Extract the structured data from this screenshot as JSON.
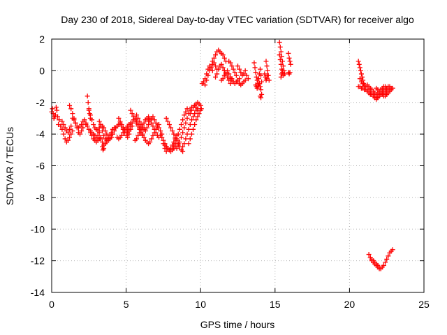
{
  "chart_data": {
    "type": "scatter",
    "title": "Day 230 of 2018, Sidereal Day-to-day VTEC variation (SDTVAR) for receiver algo",
    "xlabel": "GPS time / hours",
    "ylabel": "SDTVAR / TECUs",
    "xlim": [
      0,
      25
    ],
    "ylim": [
      -14,
      2
    ],
    "xticks": [
      0,
      5,
      10,
      15,
      20,
      25
    ],
    "yticks": [
      -14,
      -12,
      -10,
      -8,
      -6,
      -4,
      -2,
      0,
      2
    ],
    "xtick_labels": [
      "0",
      "5",
      "10",
      "15",
      "20",
      "25"
    ],
    "ytick_labels": [
      "-14",
      "-12",
      "-10",
      "-8",
      "-6",
      "-4",
      "-2",
      "0",
      "2"
    ],
    "grid": true,
    "marker": "+",
    "color": "#ff0000",
    "series": [
      {
        "name": "SDTVAR",
        "x": [
          0.0,
          0.05,
          0.1,
          0.15,
          0.2,
          0.25,
          0.3,
          0.35,
          0.4,
          0.45,
          0.5,
          0.6,
          0.7,
          0.8,
          0.9,
          1.0,
          1.1,
          1.2,
          1.3,
          1.4,
          0.7,
          0.8,
          0.9,
          1.0,
          1.1,
          1.2,
          1.3,
          1.2,
          1.3,
          1.4,
          1.5,
          1.6,
          1.7,
          1.8,
          1.9,
          2.0,
          2.1,
          1.4,
          1.5,
          1.6,
          1.7,
          1.8,
          1.9,
          2.0,
          2.1,
          2.2,
          2.3,
          2.3,
          2.4,
          2.5,
          2.6,
          2.7,
          2.8,
          2.9,
          3.0,
          3.1,
          3.2,
          2.4,
          2.45,
          2.5,
          2.55,
          2.6,
          2.5,
          2.6,
          2.7,
          2.8,
          2.9,
          3.0,
          3.1,
          3.2,
          3.3,
          2.6,
          2.7,
          2.8,
          2.9,
          3.0,
          3.1,
          3.2,
          3.3,
          3.2,
          3.3,
          3.4,
          3.5,
          3.6,
          3.7,
          3.8,
          3.9,
          4.0,
          4.1,
          4.2,
          3.3,
          3.4,
          3.5,
          3.6,
          3.7,
          3.8,
          3.9,
          4.0,
          4.1,
          3.4,
          3.5,
          3.6,
          3.7,
          3.8,
          3.9,
          4.0,
          4.1,
          4.2,
          4.3,
          3.4,
          3.45,
          3.5,
          4.3,
          4.4,
          4.5,
          4.6,
          4.7,
          4.8,
          4.9,
          5.0,
          5.1,
          5.2,
          4.4,
          4.5,
          4.6,
          4.7,
          4.8,
          4.9,
          5.0,
          5.1,
          5.2,
          5.3,
          4.5,
          4.6,
          4.7,
          4.8,
          4.9,
          5.0,
          5.1,
          5.2,
          5.3,
          5.4,
          5.1,
          5.2,
          5.3,
          5.4,
          5.5,
          5.6,
          5.7,
          5.8,
          5.9,
          6.0,
          6.1,
          5.3,
          5.4,
          5.5,
          5.6,
          5.7,
          5.8,
          5.9,
          6.0,
          6.1,
          6.2,
          5.6,
          5.7,
          5.8,
          5.9,
          6.0,
          6.1,
          6.2,
          6.3,
          6.4,
          6.5,
          5.7,
          5.8,
          5.9,
          6.0,
          6.1,
          6.2,
          6.3,
          6.4,
          6.5,
          6.3,
          6.4,
          6.5,
          6.6,
          6.7,
          6.8,
          6.9,
          7.0,
          7.1,
          7.2,
          6.5,
          6.6,
          6.7,
          6.8,
          6.9,
          7.0,
          7.1,
          7.2,
          7.3,
          6.5,
          6.6,
          6.7,
          6.8,
          6.9,
          7.0,
          7.1,
          7.2,
          7.3,
          7.4,
          7.4,
          7.5,
          7.6,
          7.7,
          7.8,
          7.9,
          8.0,
          8.1,
          8.2,
          8.3,
          8.4,
          7.5,
          7.6,
          7.7,
          7.8,
          7.9,
          8.0,
          8.1,
          8.2,
          8.3,
          7.7,
          7.8,
          7.9,
          8.0,
          8.1,
          8.2,
          8.3,
          8.4,
          8.5,
          8.6,
          8.7,
          8.8,
          7.6,
          7.7,
          7.8,
          8.2,
          8.3,
          8.4,
          8.5,
          8.6,
          8.7,
          8.8,
          8.9,
          9.0,
          9.1,
          8.4,
          8.5,
          8.6,
          8.7,
          8.8,
          8.9,
          9.0,
          9.1,
          9.2,
          9.3,
          9.4,
          8.8,
          8.9,
          9.0,
          9.1,
          9.2,
          9.3,
          9.4,
          9.5,
          9.6,
          9.7,
          9.8,
          9.2,
          9.3,
          9.4,
          9.5,
          9.6,
          9.7,
          9.8,
          9.9,
          10.0,
          9.5,
          9.6,
          9.7,
          9.8,
          9.9,
          10.0,
          10.05,
          9.3,
          9.4,
          9.5,
          9.6,
          9.7,
          9.8,
          10.1,
          10.2,
          10.3,
          10.4,
          10.5,
          10.6,
          10.7,
          10.8,
          10.3,
          10.4,
          10.5,
          10.6,
          10.7,
          10.8,
          10.9,
          11.0,
          11.1,
          10.8,
          10.9,
          11.0,
          11.1,
          11.2,
          11.3,
          11.4,
          11.5,
          11.6,
          11.7,
          11.0,
          11.1,
          11.2,
          11.3,
          11.4,
          11.5,
          11.6,
          11.7,
          11.4,
          11.5,
          11.6,
          11.7,
          11.8,
          11.9,
          12.0,
          12.1,
          11.9,
          12.0,
          12.1,
          12.2,
          12.3,
          12.4,
          12.0,
          12.1,
          12.2,
          12.3,
          12.4,
          12.5,
          12.6,
          12.5,
          12.6,
          12.7,
          12.8,
          12.9,
          13.0,
          13.1,
          13.2,
          12.5,
          12.6,
          12.7,
          12.8,
          12.9,
          13.0,
          11.6,
          11.7,
          11.8,
          11.9,
          12.0,
          13.6,
          13.65,
          13.7,
          13.75,
          13.8,
          13.85,
          13.9,
          13.95,
          14.0,
          14.05,
          14.1,
          13.7,
          13.75,
          13.8,
          13.85,
          13.9,
          13.95,
          14.0,
          14.05,
          14.0,
          14.05,
          14.1,
          14.4,
          14.45,
          14.5,
          14.55,
          14.6,
          14.3,
          14.35,
          14.4,
          14.45,
          14.5,
          15.3,
          15.35,
          15.4,
          15.45,
          15.5,
          15.55,
          15.6,
          15.65,
          15.3,
          15.35,
          15.4,
          15.45,
          15.5,
          15.55,
          15.4,
          15.45,
          15.5,
          15.9,
          15.95,
          16.0,
          16.05,
          15.9,
          15.95,
          16.0,
          20.6,
          20.65,
          20.7,
          20.75,
          20.8,
          20.85,
          20.9,
          20.95,
          21.0,
          20.7,
          20.8,
          20.9,
          21.0,
          21.1,
          21.2,
          21.3,
          21.4,
          21.5,
          21.6,
          21.7,
          21.8,
          21.9,
          22.0,
          22.1,
          22.2,
          22.3,
          22.4,
          22.5,
          22.6,
          22.7,
          20.6,
          20.7,
          20.8,
          20.9,
          21.0,
          21.1,
          21.2,
          21.3,
          21.4,
          21.5,
          21.6,
          21.7,
          21.8,
          21.9,
          22.0,
          22.1,
          22.2,
          22.3,
          22.4,
          22.5,
          21.2,
          21.3,
          21.4,
          21.5,
          21.6,
          21.7,
          21.8,
          21.9,
          22.0,
          22.1,
          22.2,
          22.3,
          22.4,
          21.8,
          21.9,
          22.0,
          22.1,
          22.2,
          22.3,
          22.4,
          22.5,
          22.6,
          22.7,
          22.8,
          22.2,
          22.3,
          22.4,
          22.5,
          22.6,
          22.7,
          22.8,
          22.9,
          21.4,
          21.5,
          21.6,
          21.7,
          21.8,
          21.9,
          22.0,
          22.1,
          22.2,
          22.3,
          22.4,
          22.5,
          22.6,
          22.7,
          22.8,
          22.9,
          21.3,
          21.4,
          21.5,
          21.6,
          21.7,
          21.8,
          21.9,
          22.0,
          22.1
        ],
        "y": [
          -2.6,
          -2.4,
          -2.7,
          -3.0,
          -2.9,
          -2.8,
          -2.3,
          -2.5,
          -2.9,
          -3.4,
          -3.1,
          -3.5,
          -3.7,
          -4.0,
          -4.3,
          -4.5,
          -4.4,
          -4.2,
          -4.0,
          -3.8,
          -3.2,
          -3.4,
          -3.6,
          -3.8,
          -3.9,
          -3.7,
          -3.5,
          -2.2,
          -2.4,
          -2.7,
          -3.0,
          -3.3,
          -3.6,
          -3.9,
          -4.0,
          -3.8,
          -3.6,
          -3.0,
          -3.1,
          -3.3,
          -3.5,
          -3.6,
          -3.5,
          -3.4,
          -3.2,
          -3.1,
          -3.3,
          -3.4,
          -3.5,
          -3.7,
          -3.8,
          -3.9,
          -4.0,
          -4.1,
          -4.2,
          -4.1,
          -3.9,
          -1.6,
          -2.0,
          -2.4,
          -2.7,
          -3.0,
          -2.5,
          -2.8,
          -3.1,
          -3.4,
          -3.6,
          -3.7,
          -3.8,
          -3.6,
          -3.4,
          -3.9,
          -4.1,
          -4.3,
          -4.4,
          -4.5,
          -4.4,
          -4.3,
          -4.2,
          -3.2,
          -3.5,
          -3.8,
          -4.1,
          -4.3,
          -4.4,
          -4.3,
          -4.1,
          -3.9,
          -3.7,
          -3.6,
          -4.3,
          -4.5,
          -4.7,
          -4.6,
          -4.5,
          -4.4,
          -4.3,
          -4.2,
          -4.0,
          -3.5,
          -3.6,
          -3.8,
          -4.0,
          -4.2,
          -4.3,
          -4.2,
          -4.0,
          -3.8,
          -3.6,
          -4.8,
          -5.0,
          -4.9,
          -3.6,
          -3.5,
          -3.4,
          -3.3,
          -3.5,
          -3.7,
          -3.9,
          -4.1,
          -4.2,
          -4.0,
          -4.2,
          -4.3,
          -4.2,
          -4.1,
          -3.9,
          -3.8,
          -3.6,
          -3.5,
          -3.4,
          -3.3,
          -3.0,
          -3.2,
          -3.4,
          -3.6,
          -3.7,
          -3.8,
          -3.9,
          -3.8,
          -3.7,
          -3.5,
          -3.8,
          -3.7,
          -3.5,
          -3.3,
          -3.1,
          -3.0,
          -3.2,
          -3.4,
          -3.6,
          -3.8,
          -4.0,
          -2.5,
          -2.7,
          -2.9,
          -3.1,
          -3.3,
          -3.5,
          -3.7,
          -3.9,
          -4.1,
          -4.2,
          -4.4,
          -4.3,
          -4.1,
          -3.9,
          -3.7,
          -3.5,
          -3.3,
          -3.1,
          -3.0,
          -3.2,
          -2.8,
          -3.0,
          -3.2,
          -3.4,
          -3.6,
          -3.7,
          -3.8,
          -3.6,
          -3.4,
          -4.4,
          -4.5,
          -4.6,
          -4.5,
          -4.3,
          -4.1,
          -3.9,
          -3.7,
          -3.5,
          -3.4,
          -2.9,
          -3.1,
          -3.3,
          -3.5,
          -3.7,
          -3.9,
          -4.1,
          -4.2,
          -4.1,
          -3.0,
          -3.1,
          -3.0,
          -2.9,
          -3.1,
          -3.3,
          -3.5,
          -3.6,
          -3.8,
          -4.0,
          -4.2,
          -4.4,
          -4.6,
          -4.8,
          -4.9,
          -5.0,
          -4.9,
          -4.7,
          -4.5,
          -4.3,
          -4.1,
          -4.6,
          -4.7,
          -4.8,
          -4.9,
          -5.0,
          -5.1,
          -5.0,
          -4.9,
          -4.8,
          -3.0,
          -3.2,
          -3.4,
          -3.6,
          -3.8,
          -4.0,
          -4.2,
          -4.4,
          -4.6,
          -4.8,
          -5.0,
          -5.1,
          -4.9,
          -5.1,
          -4.9,
          -4.8,
          -4.6,
          -4.3,
          -4.0,
          -3.7,
          -3.4,
          -3.1,
          -2.8,
          -2.6,
          -2.4,
          -4.9,
          -4.7,
          -4.5,
          -4.2,
          -3.9,
          -3.6,
          -3.3,
          -3.0,
          -2.7,
          -2.5,
          -2.3,
          -4.8,
          -4.6,
          -4.3,
          -4.0,
          -3.7,
          -3.4,
          -3.1,
          -2.9,
          -2.7,
          -2.5,
          -2.4,
          -4.6,
          -4.3,
          -4.0,
          -3.7,
          -3.4,
          -3.1,
          -2.9,
          -2.7,
          -2.5,
          -2.3,
          -2.2,
          -2.1,
          -2.0,
          -2.1,
          -2.2,
          -2.4,
          -2.7,
          -2.5,
          -2.3,
          -2.2,
          -2.3,
          -2.5,
          -0.8,
          -0.7,
          -0.5,
          -0.2,
          0.1,
          0.3,
          0.2,
          0.0,
          -0.9,
          -0.6,
          -0.3,
          0.0,
          0.2,
          0.4,
          0.5,
          0.3,
          0.1,
          0.6,
          0.8,
          1.0,
          1.2,
          1.3,
          1.2,
          1.1,
          1.0,
          0.8,
          0.6,
          -0.4,
          -0.2,
          0.1,
          0.3,
          0.4,
          0.2,
          0.0,
          -0.2,
          -0.6,
          -0.5,
          -0.3,
          -0.1,
          0.0,
          -0.2,
          -0.4,
          -0.5,
          0.6,
          0.5,
          0.3,
          0.1,
          -0.1,
          -0.3,
          -0.5,
          -0.6,
          -0.7,
          -0.8,
          -0.7,
          -0.6,
          -0.5,
          0.3,
          0.1,
          -0.1,
          -0.3,
          -0.2,
          0.0,
          -0.3,
          -0.5,
          -0.7,
          -0.8,
          -0.9,
          -0.8,
          -0.7,
          -0.6,
          0.0,
          -0.2,
          -0.4,
          -0.6,
          -0.8,
          0.5,
          0.2,
          -0.1,
          -0.4,
          -0.6,
          -0.8,
          -0.5,
          -0.2,
          0.1,
          -0.3,
          -0.7,
          -0.9,
          -1.0,
          -1.1,
          -1.0,
          -0.9,
          -0.8,
          -1.0,
          -1.2,
          -1.6,
          -1.7,
          -1.5,
          0.6,
          0.3,
          0.0,
          -0.3,
          -0.6,
          -0.2,
          -0.4,
          -0.6,
          -0.5,
          -0.3,
          1.8,
          1.5,
          1.2,
          0.9,
          0.6,
          0.3,
          0.0,
          -0.2,
          1.0,
          0.7,
          0.4,
          0.1,
          -0.1,
          -0.3,
          -0.4,
          -0.2,
          0.0,
          1.1,
          0.8,
          0.6,
          0.4,
          -0.1,
          -0.2,
          -0.1,
          0.6,
          0.4,
          0.2,
          0.0,
          -0.2,
          -0.4,
          -0.6,
          -0.8,
          -1.0,
          -0.5,
          -0.7,
          -0.8,
          -0.9,
          -1.0,
          -1.2,
          -1.3,
          -1.4,
          -1.5,
          -1.6,
          -1.7,
          -1.8,
          -1.7,
          -1.6,
          -1.5,
          -1.4,
          -1.3,
          -1.2,
          -1.1,
          -1.0,
          -1.0,
          -1.0,
          -1.0,
          -1.1,
          -1.1,
          -1.2,
          -1.2,
          -1.3,
          -1.4,
          -1.5,
          -1.5,
          -1.6,
          -1.6,
          -1.7,
          -1.7,
          -1.6,
          -1.5,
          -1.4,
          -1.3,
          -1.2,
          -1.1,
          -0.9,
          -1.0,
          -1.1,
          -1.2,
          -1.3,
          -1.4,
          -1.5,
          -1.4,
          -1.3,
          -1.2,
          -1.1,
          -1.0,
          -1.0,
          -1.1,
          -1.2,
          -1.3,
          -1.4,
          -1.5,
          -1.6,
          -1.5,
          -1.4,
          -1.3,
          -1.2,
          -1.1,
          -1.4,
          -1.5,
          -1.6,
          -1.5,
          -1.4,
          -1.3,
          -1.2,
          -1.1,
          -11.8,
          -11.9,
          -12.0,
          -12.1,
          -12.2,
          -12.3,
          -12.4,
          -12.5,
          -12.4,
          -12.3,
          -12.1,
          -11.9,
          -11.7,
          -11.5,
          -11.4,
          -11.3,
          -11.6,
          -11.8,
          -12.0,
          -12.1,
          -12.2,
          -12.3,
          -12.4,
          -12.5,
          -12.5
        ]
      }
    ]
  }
}
